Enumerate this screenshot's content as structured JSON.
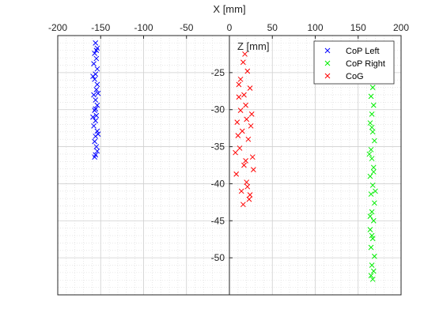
{
  "chart_data": {
    "type": "scatter",
    "xlabel": "X [mm]",
    "ylabel": "Z [mm]",
    "xlim": [
      -200,
      200
    ],
    "ylim": [
      -55,
      -20
    ],
    "x_axis_location": "top",
    "y_axis_location": "origin",
    "x_ticks": [
      -200,
      -150,
      -100,
      -50,
      0,
      50,
      100,
      150,
      200
    ],
    "y_ticks": [
      -25,
      -30,
      -35,
      -40,
      -45,
      -50
    ],
    "x_tick_labels": [
      "-200",
      "-150",
      "-100",
      "-50",
      "0",
      "50",
      "100",
      "150",
      "200"
    ],
    "y_tick_labels": [
      "-25",
      "-30",
      "-35",
      "-40",
      "-45",
      "-50"
    ],
    "grid": true,
    "minor_grid": true,
    "legend_position": "top-right",
    "marker": "x",
    "series": [
      {
        "name": "CoP Left",
        "color": "#0000ff",
        "points": [
          [
            -156,
            -21
          ],
          [
            -154,
            -21.7
          ],
          [
            -157,
            -22.4
          ],
          [
            -155,
            -23.1
          ],
          [
            -158,
            -23.8
          ],
          [
            -154,
            -24.5
          ],
          [
            -156,
            -25.2
          ],
          [
            -157,
            -25.9
          ],
          [
            -154,
            -26.6
          ],
          [
            -155,
            -27.3
          ],
          [
            -158,
            -28.0
          ],
          [
            -156,
            -28.7
          ],
          [
            -154,
            -29.4
          ],
          [
            -157,
            -30.1
          ],
          [
            -155,
            -30.8
          ],
          [
            -156,
            -31.5
          ],
          [
            -158,
            -32.2
          ],
          [
            -154,
            -32.9
          ],
          [
            -156,
            -33.6
          ],
          [
            -157,
            -34.3
          ],
          [
            -155,
            -35.0
          ],
          [
            -154,
            -35.6
          ],
          [
            -156,
            -36.1
          ],
          [
            -157,
            -36.4
          ],
          [
            -155,
            -22.0
          ],
          [
            -153,
            -27.8
          ],
          [
            -159,
            -31.0
          ],
          [
            -153,
            -33.3
          ],
          [
            -159,
            -25.5
          ],
          [
            -156,
            -29.9
          ]
        ]
      },
      {
        "name": "CoP Right",
        "color": "#00ee00",
        "points": [
          [
            167,
            -27.0
          ],
          [
            165,
            -28.2
          ],
          [
            168,
            -29.4
          ],
          [
            166,
            -30.6
          ],
          [
            164,
            -31.8
          ],
          [
            167,
            -33.0
          ],
          [
            169,
            -34.2
          ],
          [
            165,
            -35.4
          ],
          [
            166,
            -36.6
          ],
          [
            168,
            -37.8
          ],
          [
            164,
            -39.0
          ],
          [
            167,
            -40.2
          ],
          [
            165,
            -41.4
          ],
          [
            169,
            -42.6
          ],
          [
            166,
            -43.8
          ],
          [
            168,
            -45.0
          ],
          [
            164,
            -46.2
          ],
          [
            167,
            -47.4
          ],
          [
            165,
            -48.6
          ],
          [
            169,
            -49.8
          ],
          [
            166,
            -51.0
          ],
          [
            168,
            -51.8
          ],
          [
            165,
            -52.4
          ],
          [
            167,
            -52.9
          ],
          [
            166,
            -32.4
          ],
          [
            164,
            -44.4
          ],
          [
            168,
            -38.4
          ],
          [
            166,
            -47.0
          ],
          [
            163,
            -36.0
          ],
          [
            170,
            -41.0
          ]
        ]
      },
      {
        "name": "CoG",
        "color": "#ff0000",
        "points": [
          [
            18,
            -22.5
          ],
          [
            16,
            -23.6
          ],
          [
            21,
            -24.8
          ],
          [
            13,
            -25.9
          ],
          [
            24,
            -27.1
          ],
          [
            11,
            -28.3
          ],
          [
            19,
            -29.4
          ],
          [
            26,
            -30.6
          ],
          [
            9,
            -31.7
          ],
          [
            15,
            -32.9
          ],
          [
            22,
            -34.0
          ],
          [
            12,
            -35.2
          ],
          [
            27,
            -36.4
          ],
          [
            17,
            -37.5
          ],
          [
            8,
            -38.7
          ],
          [
            20,
            -39.8
          ],
          [
            14,
            -41.0
          ],
          [
            23,
            -42.1
          ],
          [
            16,
            -42.8
          ],
          [
            10,
            -33.5
          ],
          [
            25,
            -32.2
          ],
          [
            19,
            -36.9
          ],
          [
            13,
            -30.1
          ],
          [
            21,
            -40.4
          ],
          [
            11,
            -26.6
          ],
          [
            28,
            -38.1
          ],
          [
            17,
            -28.0
          ],
          [
            24,
            -41.5
          ],
          [
            7,
            -35.8
          ],
          [
            20,
            -31.3
          ]
        ]
      }
    ]
  }
}
